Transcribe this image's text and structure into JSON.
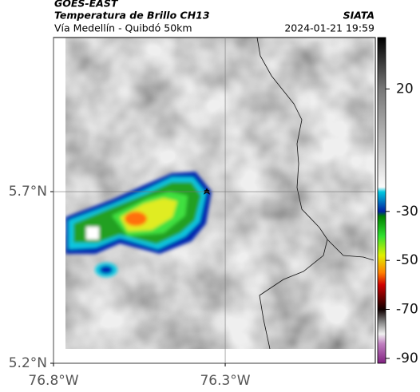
{
  "header": {
    "title": "GOES-EAST",
    "subtitle": "Temperatura de Brillo CH13",
    "source": "SIATA",
    "route": "Vía Medellín - Quibdó 50km",
    "timestamp": "2024-01-21 19:59"
  },
  "map": {
    "lonlim": [
      -76.8,
      -75.863
    ],
    "latlim": [
      5.2,
      6.149
    ],
    "lat_ticks": [
      {
        "value": 5.2,
        "label": "5.2°N"
      },
      {
        "value": 5.7,
        "label": "5.7°N"
      }
    ],
    "lon_ticks": [
      {
        "value": -76.8,
        "label": "76.8°W"
      },
      {
        "value": -76.3,
        "label": "76.3°W"
      }
    ],
    "grid": true
  },
  "colorbar": {
    "lim": [
      -92,
      41
    ],
    "ticks": [
      20,
      -30,
      -50,
      -70,
      -90
    ]
  }
}
